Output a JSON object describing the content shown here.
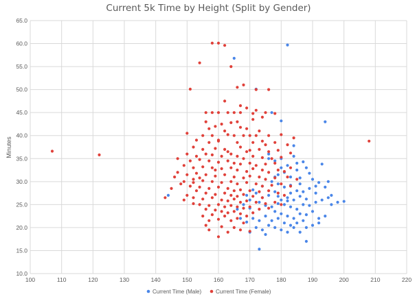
{
  "chart_data": {
    "type": "scatter",
    "title": "Current 5k Time by Height (Split by Gender)",
    "xlabel": "",
    "ylabel": "Minutes",
    "xlim": [
      100,
      220
    ],
    "ylim": [
      10,
      65
    ],
    "x_ticks": [
      "100",
      "110",
      "120",
      "130",
      "140",
      "150",
      "160",
      "170",
      "180",
      "190",
      "200",
      "210",
      "220"
    ],
    "y_ticks": [
      "10.0",
      "15.0",
      "20.0",
      "25.0",
      "30.0",
      "35.0",
      "40.0",
      "45.0",
      "50.0",
      "55.0",
      "60.0",
      "65.0"
    ],
    "grid": true,
    "legend_position": "bottom",
    "series": [
      {
        "name": "Current Time (Male)",
        "color": "#4a86e8",
        "points": [
          [
            144,
            27.0
          ],
          [
            165,
            56.8
          ],
          [
            182,
            59.7
          ],
          [
            172,
            50.1
          ],
          [
            194,
            43.0
          ],
          [
            177,
            45.0
          ],
          [
            180,
            43.2
          ],
          [
            184,
            37.8
          ],
          [
            193,
            33.8
          ],
          [
            187,
            34.3
          ],
          [
            188,
            33.0
          ],
          [
            185,
            32.5
          ],
          [
            176,
            35.0
          ],
          [
            178,
            34.5
          ],
          [
            180,
            35.0
          ],
          [
            182,
            33.5
          ],
          [
            181,
            32.0
          ],
          [
            179,
            31.5
          ],
          [
            183,
            31.0
          ],
          [
            186,
            30.8
          ],
          [
            190,
            30.5
          ],
          [
            192,
            29.8
          ],
          [
            195,
            30.0
          ],
          [
            194,
            28.8
          ],
          [
            191,
            29.0
          ],
          [
            189,
            28.5
          ],
          [
            185,
            28.0
          ],
          [
            183,
            27.5
          ],
          [
            181,
            28.8
          ],
          [
            178,
            27.8
          ],
          [
            176,
            27.0
          ],
          [
            174,
            26.5
          ],
          [
            172,
            27.5
          ],
          [
            170,
            26.0
          ],
          [
            173,
            25.5
          ],
          [
            175,
            24.8
          ],
          [
            177,
            24.5
          ],
          [
            179,
            25.2
          ],
          [
            181,
            25.0
          ],
          [
            183,
            24.5
          ],
          [
            185,
            24.0
          ],
          [
            187,
            25.0
          ],
          [
            189,
            24.8
          ],
          [
            191,
            25.5
          ],
          [
            193,
            26.0
          ],
          [
            196,
            25.0
          ],
          [
            198,
            25.5
          ],
          [
            200,
            25.7
          ],
          [
            195,
            26.5
          ],
          [
            188,
            26.2
          ],
          [
            186,
            26.8
          ],
          [
            184,
            26.0
          ],
          [
            182,
            26.5
          ],
          [
            180,
            26.0
          ],
          [
            178,
            23.5
          ],
          [
            180,
            23.0
          ],
          [
            182,
            22.5
          ],
          [
            184,
            22.0
          ],
          [
            186,
            23.0
          ],
          [
            188,
            22.8
          ],
          [
            190,
            23.5
          ],
          [
            192,
            22.0
          ],
          [
            194,
            22.5
          ],
          [
            187,
            21.5
          ],
          [
            185,
            21.0
          ],
          [
            183,
            20.5
          ],
          [
            181,
            21.0
          ],
          [
            179,
            22.0
          ],
          [
            177,
            21.5
          ],
          [
            175,
            22.5
          ],
          [
            173,
            21.5
          ],
          [
            171,
            22.0
          ],
          [
            169,
            21.2
          ],
          [
            167,
            22.0
          ],
          [
            176,
            20.5
          ],
          [
            178,
            20.0
          ],
          [
            174,
            19.5
          ],
          [
            172,
            20.0
          ],
          [
            170,
            19.0
          ],
          [
            180,
            19.5
          ],
          [
            182,
            19.0
          ],
          [
            184,
            20.0
          ],
          [
            188,
            20.0
          ],
          [
            190,
            20.5
          ],
          [
            186,
            19.0
          ],
          [
            175,
            18.5
          ],
          [
            188,
            17.0
          ],
          [
            173,
            15.3
          ],
          [
            192,
            21.0
          ],
          [
            196,
            27.0
          ],
          [
            191,
            27.5
          ],
          [
            187,
            27.8
          ],
          [
            179,
            29.5
          ],
          [
            177,
            30.0
          ],
          [
            174,
            29.0
          ],
          [
            171,
            28.2
          ],
          [
            169,
            27.0
          ],
          [
            168,
            25.0
          ],
          [
            166,
            24.0
          ],
          [
            170,
            24.2
          ],
          [
            178,
            31.0
          ],
          [
            180,
            33.0
          ],
          [
            183,
            29.2
          ],
          [
            186,
            29.5
          ],
          [
            189,
            31.8
          ],
          [
            185,
            34.0
          ],
          [
            184,
            35.5
          ],
          [
            176,
            36.0
          ],
          [
            182,
            25.8
          ],
          [
            179,
            26.8
          ]
        ]
      },
      {
        "name": "Current Time (Female)",
        "color": "#e0413a",
        "points": [
          [
            107,
            36.6
          ],
          [
            122,
            35.8
          ],
          [
            208,
            38.8
          ],
          [
            158,
            60.1
          ],
          [
            160,
            60.1
          ],
          [
            162,
            59.6
          ],
          [
            154,
            55.8
          ],
          [
            164,
            55.0
          ],
          [
            151,
            50.1
          ],
          [
            166,
            50.5
          ],
          [
            168,
            51.0
          ],
          [
            172,
            50.0
          ],
          [
            176,
            50.0
          ],
          [
            162,
            47.5
          ],
          [
            167,
            46.5
          ],
          [
            169,
            46.0
          ],
          [
            172,
            45.5
          ],
          [
            156,
            45.0
          ],
          [
            158,
            45.0
          ],
          [
            160,
            45.0
          ],
          [
            163,
            45.0
          ],
          [
            165,
            45.0
          ],
          [
            167,
            45.0
          ],
          [
            175,
            45.0
          ],
          [
            178,
            44.8
          ],
          [
            174,
            44.0
          ],
          [
            171,
            43.5
          ],
          [
            166,
            43.0
          ],
          [
            164,
            42.8
          ],
          [
            161,
            42.5
          ],
          [
            159,
            42.0
          ],
          [
            157,
            41.5
          ],
          [
            162,
            41.0
          ],
          [
            169,
            41.5
          ],
          [
            173,
            41.0
          ],
          [
            150,
            40.5
          ],
          [
            155,
            40.0
          ],
          [
            158,
            40.0
          ],
          [
            163,
            40.2
          ],
          [
            165,
            40.0
          ],
          [
            168,
            40.0
          ],
          [
            170,
            40.0
          ],
          [
            172,
            40.0
          ],
          [
            176,
            40.0
          ],
          [
            180,
            40.2
          ],
          [
            184,
            39.5
          ],
          [
            153,
            39.0
          ],
          [
            157,
            38.5
          ],
          [
            160,
            38.8
          ],
          [
            166,
            38.5
          ],
          [
            171,
            38.5
          ],
          [
            175,
            38.0
          ],
          [
            178,
            38.5
          ],
          [
            182,
            38.0
          ],
          [
            152,
            37.5
          ],
          [
            155,
            37.0
          ],
          [
            159,
            37.2
          ],
          [
            162,
            37.0
          ],
          [
            167,
            37.5
          ],
          [
            169,
            36.5
          ],
          [
            173,
            37.0
          ],
          [
            176,
            36.5
          ],
          [
            179,
            36.8
          ],
          [
            183,
            36.2
          ],
          [
            150,
            36.0
          ],
          [
            153,
            35.5
          ],
          [
            156,
            36.0
          ],
          [
            158,
            35.8
          ],
          [
            161,
            35.5
          ],
          [
            164,
            36.0
          ],
          [
            166,
            35.5
          ],
          [
            168,
            35.0
          ],
          [
            171,
            35.5
          ],
          [
            174,
            35.2
          ],
          [
            177,
            35.0
          ],
          [
            180,
            35.3
          ],
          [
            147,
            35.0
          ],
          [
            151,
            34.5
          ],
          [
            154,
            34.8
          ],
          [
            157,
            34.5
          ],
          [
            160,
            34.2
          ],
          [
            163,
            34.5
          ],
          [
            165,
            34.0
          ],
          [
            167,
            33.8
          ],
          [
            170,
            34.0
          ],
          [
            172,
            33.5
          ],
          [
            175,
            33.8
          ],
          [
            178,
            34.0
          ],
          [
            149,
            33.5
          ],
          [
            152,
            33.0
          ],
          [
            155,
            33.2
          ],
          [
            158,
            33.0
          ],
          [
            161,
            32.8
          ],
          [
            164,
            33.0
          ],
          [
            166,
            32.5
          ],
          [
            169,
            32.2
          ],
          [
            171,
            32.8
          ],
          [
            174,
            32.5
          ],
          [
            176,
            32.0
          ],
          [
            179,
            32.5
          ],
          [
            181,
            32.2
          ],
          [
            147,
            32.0
          ],
          [
            150,
            31.5
          ],
          [
            153,
            31.8
          ],
          [
            156,
            31.5
          ],
          [
            159,
            31.2
          ],
          [
            162,
            31.5
          ],
          [
            165,
            31.0
          ],
          [
            168,
            30.8
          ],
          [
            170,
            31.2
          ],
          [
            173,
            31.0
          ],
          [
            175,
            30.5
          ],
          [
            178,
            30.8
          ],
          [
            182,
            31.0
          ],
          [
            185,
            30.5
          ],
          [
            146,
            31.0
          ],
          [
            149,
            30.0
          ],
          [
            152,
            30.5
          ],
          [
            155,
            30.2
          ],
          [
            158,
            30.0
          ],
          [
            161,
            29.8
          ],
          [
            164,
            30.0
          ],
          [
            166,
            29.5
          ],
          [
            169,
            29.8
          ],
          [
            172,
            29.5
          ],
          [
            174,
            29.0
          ],
          [
            177,
            29.2
          ],
          [
            180,
            29.5
          ],
          [
            183,
            29.0
          ],
          [
            148,
            29.5
          ],
          [
            151,
            29.0
          ],
          [
            154,
            28.8
          ],
          [
            157,
            28.5
          ],
          [
            160,
            28.8
          ],
          [
            163,
            28.5
          ],
          [
            165,
            28.0
          ],
          [
            167,
            28.2
          ],
          [
            170,
            28.0
          ],
          [
            173,
            27.8
          ],
          [
            176,
            28.0
          ],
          [
            179,
            27.5
          ],
          [
            153,
            28.0
          ],
          [
            156,
            27.5
          ],
          [
            159,
            27.2
          ],
          [
            162,
            27.5
          ],
          [
            164,
            27.0
          ],
          [
            166,
            26.8
          ],
          [
            168,
            27.2
          ],
          [
            171,
            26.8
          ],
          [
            174,
            26.5
          ],
          [
            150,
            27.0
          ],
          [
            152,
            26.5
          ],
          [
            155,
            26.2
          ],
          [
            158,
            26.5
          ],
          [
            161,
            26.0
          ],
          [
            163,
            25.8
          ],
          [
            165,
            26.2
          ],
          [
            167,
            25.5
          ],
          [
            169,
            25.8
          ],
          [
            172,
            25.5
          ],
          [
            175,
            25.2
          ],
          [
            178,
            25.5
          ],
          [
            180,
            25.0
          ],
          [
            149,
            26.0
          ],
          [
            152,
            25.2
          ],
          [
            154,
            25.0
          ],
          [
            157,
            24.8
          ],
          [
            160,
            25.0
          ],
          [
            162,
            24.5
          ],
          [
            164,
            24.8
          ],
          [
            166,
            24.5
          ],
          [
            168,
            24.2
          ],
          [
            170,
            24.5
          ],
          [
            173,
            24.0
          ],
          [
            176,
            24.2
          ],
          [
            156,
            24.0
          ],
          [
            159,
            23.8
          ],
          [
            161,
            23.5
          ],
          [
            163,
            23.2
          ],
          [
            165,
            23.5
          ],
          [
            167,
            23.0
          ],
          [
            171,
            23.2
          ],
          [
            155,
            22.5
          ],
          [
            158,
            22.8
          ],
          [
            162,
            22.5
          ],
          [
            166,
            22.0
          ],
          [
            169,
            22.5
          ],
          [
            157,
            21.5
          ],
          [
            160,
            21.8
          ],
          [
            164,
            21.5
          ],
          [
            168,
            21.0
          ],
          [
            156,
            20.5
          ],
          [
            161,
            20.2
          ],
          [
            165,
            20.0
          ],
          [
            157,
            19.5
          ],
          [
            160,
            18.0
          ],
          [
            163,
            19.0
          ],
          [
            167,
            19.5
          ],
          [
            170,
            19.2
          ],
          [
            143,
            26.5
          ],
          [
            145,
            28.5
          ],
          [
            154,
            30.8
          ],
          [
            159,
            32.5
          ],
          [
            163,
            36.5
          ],
          [
            170,
            36.8
          ],
          [
            174,
            38.8
          ],
          [
            160,
            39.0
          ],
          [
            167,
            41.8
          ],
          [
            156,
            43.0
          ],
          [
            171,
            44.8
          ],
          [
            152,
            29.8
          ],
          [
            181,
            27.0
          ],
          [
            183,
            33.0
          ]
        ]
      }
    ]
  }
}
